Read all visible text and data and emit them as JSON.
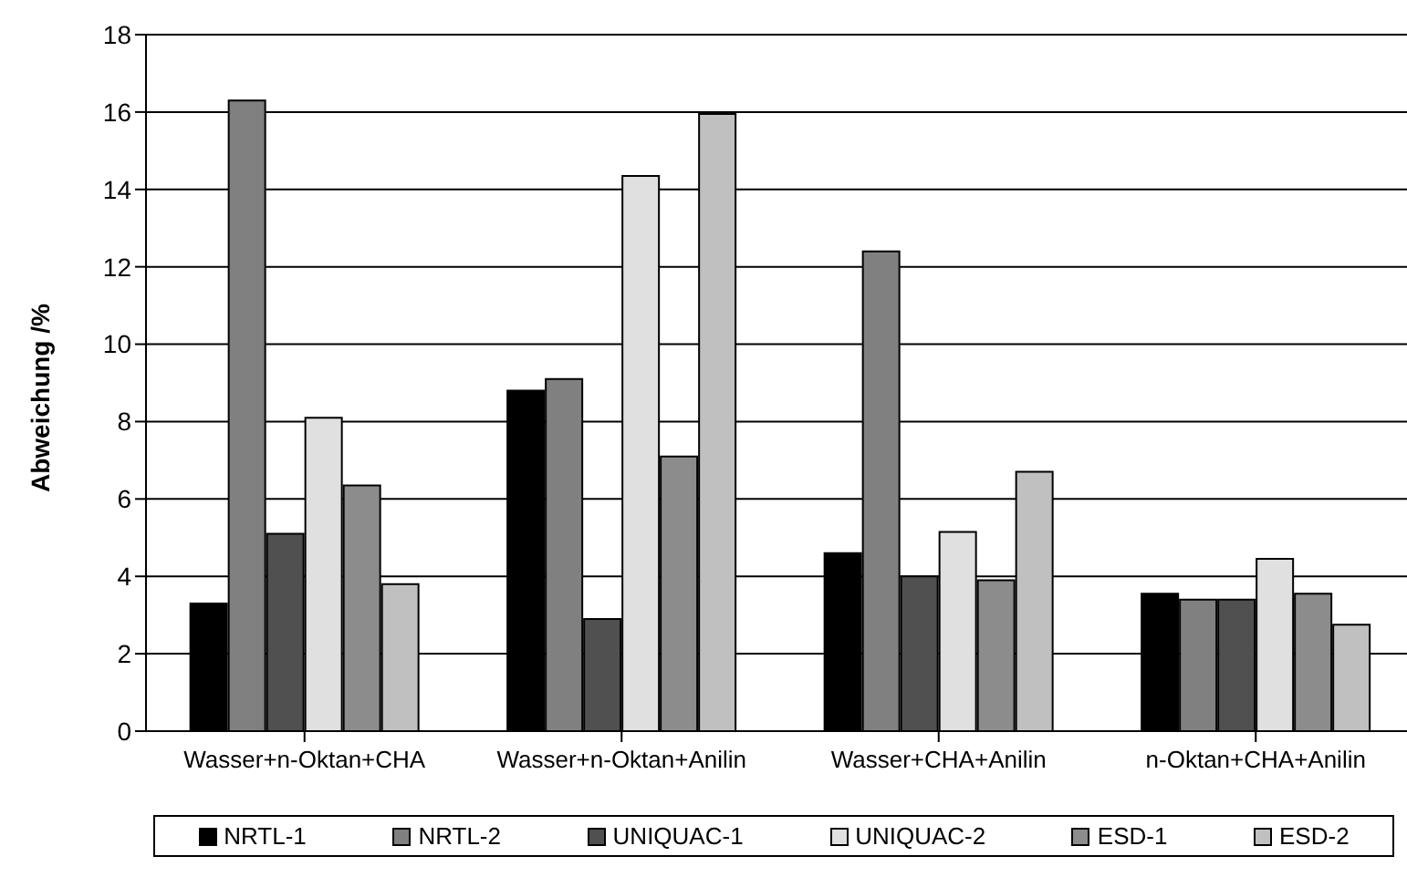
{
  "chart_data": {
    "type": "bar",
    "ylabel": "Abweichung /%",
    "categories": [
      "Wasser+n-Oktan+CHA",
      "Wasser+n-Oktan+Anilin",
      "Wasser+CHA+Anilin",
      "n-Oktan+CHA+Anilin"
    ],
    "series": [
      {
        "name": "NRTL-1",
        "color": "#000000",
        "values": [
          3.3,
          8.8,
          4.6,
          3.55
        ]
      },
      {
        "name": "NRTL-2",
        "color": "#808080",
        "values": [
          16.3,
          9.1,
          12.4,
          3.4
        ]
      },
      {
        "name": "UNIQUAC-1",
        "color": "#505050",
        "values": [
          5.1,
          2.9,
          4.0,
          3.4
        ]
      },
      {
        "name": "UNIQUAC-2",
        "color": "#e0e0e0",
        "values": [
          8.1,
          14.35,
          5.15,
          4.45
        ]
      },
      {
        "name": "ESD-1",
        "color": "#8c8c8c",
        "values": [
          6.35,
          7.1,
          3.9,
          3.55
        ]
      },
      {
        "name": "ESD-2",
        "color": "#c0c0c0",
        "values": [
          3.8,
          15.95,
          6.7,
          2.75
        ]
      }
    ],
    "ylim": [
      0,
      18
    ],
    "yticks": [
      0,
      2,
      4,
      6,
      8,
      10,
      12,
      14,
      16,
      18
    ],
    "grid": "y",
    "legend": "bottom"
  }
}
